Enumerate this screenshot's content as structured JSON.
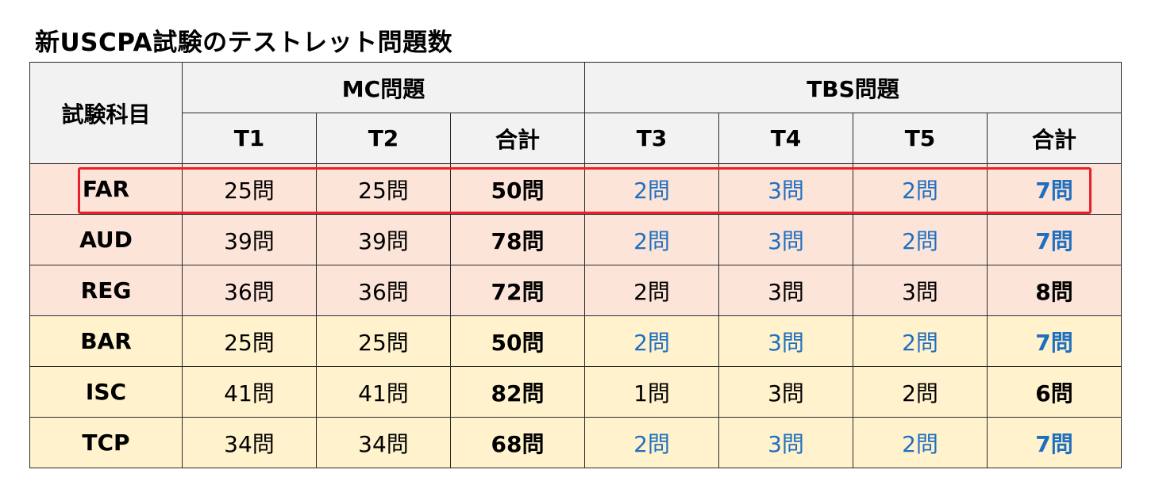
{
  "title": "新USCPA試験のテストレット問題数",
  "header": {
    "subject": "試験科目",
    "mc_group": "MC問題",
    "tbs_group": "TBS問題",
    "mc_cols": [
      "T1",
      "T2",
      "合計"
    ],
    "tbs_cols": [
      "T3",
      "T4",
      "T5",
      "合計"
    ]
  },
  "rows": [
    {
      "subject": "FAR",
      "t1": "25問",
      "t2": "25問",
      "mc_total": "50問",
      "t3": "2問",
      "t4": "3問",
      "t5": "2問",
      "tbs_total": "7問",
      "band": "pink",
      "tbs_color": "blue",
      "highlighted": true
    },
    {
      "subject": "AUD",
      "t1": "39問",
      "t2": "39問",
      "mc_total": "78問",
      "t3": "2問",
      "t4": "3問",
      "t5": "2問",
      "tbs_total": "7問",
      "band": "pink",
      "tbs_color": "blue"
    },
    {
      "subject": "REG",
      "t1": "36問",
      "t2": "36問",
      "mc_total": "72問",
      "t3": "2問",
      "t4": "3問",
      "t5": "3問",
      "tbs_total": "8問",
      "band": "pink",
      "tbs_color": "black"
    },
    {
      "subject": "BAR",
      "t1": "25問",
      "t2": "25問",
      "mc_total": "50問",
      "t3": "2問",
      "t4": "3問",
      "t5": "2問",
      "tbs_total": "7問",
      "band": "yellow",
      "tbs_color": "blue"
    },
    {
      "subject": "ISC",
      "t1": "41問",
      "t2": "41問",
      "mc_total": "82問",
      "t3": "1問",
      "t4": "3問",
      "t5": "2問",
      "tbs_total": "6問",
      "band": "yellow",
      "tbs_color": "black"
    },
    {
      "subject": "TCP",
      "t1": "34問",
      "t2": "34問",
      "mc_total": "68問",
      "t3": "2問",
      "t4": "3問",
      "t5": "2問",
      "tbs_total": "7問",
      "band": "yellow",
      "tbs_color": "blue"
    }
  ],
  "colors": {
    "pink_band": "#fce4d9",
    "yellow_band": "#fff2cc",
    "header_bg": "#f2f2f2",
    "blue_text": "#1f6fbf",
    "highlight_border": "#e8202e"
  }
}
